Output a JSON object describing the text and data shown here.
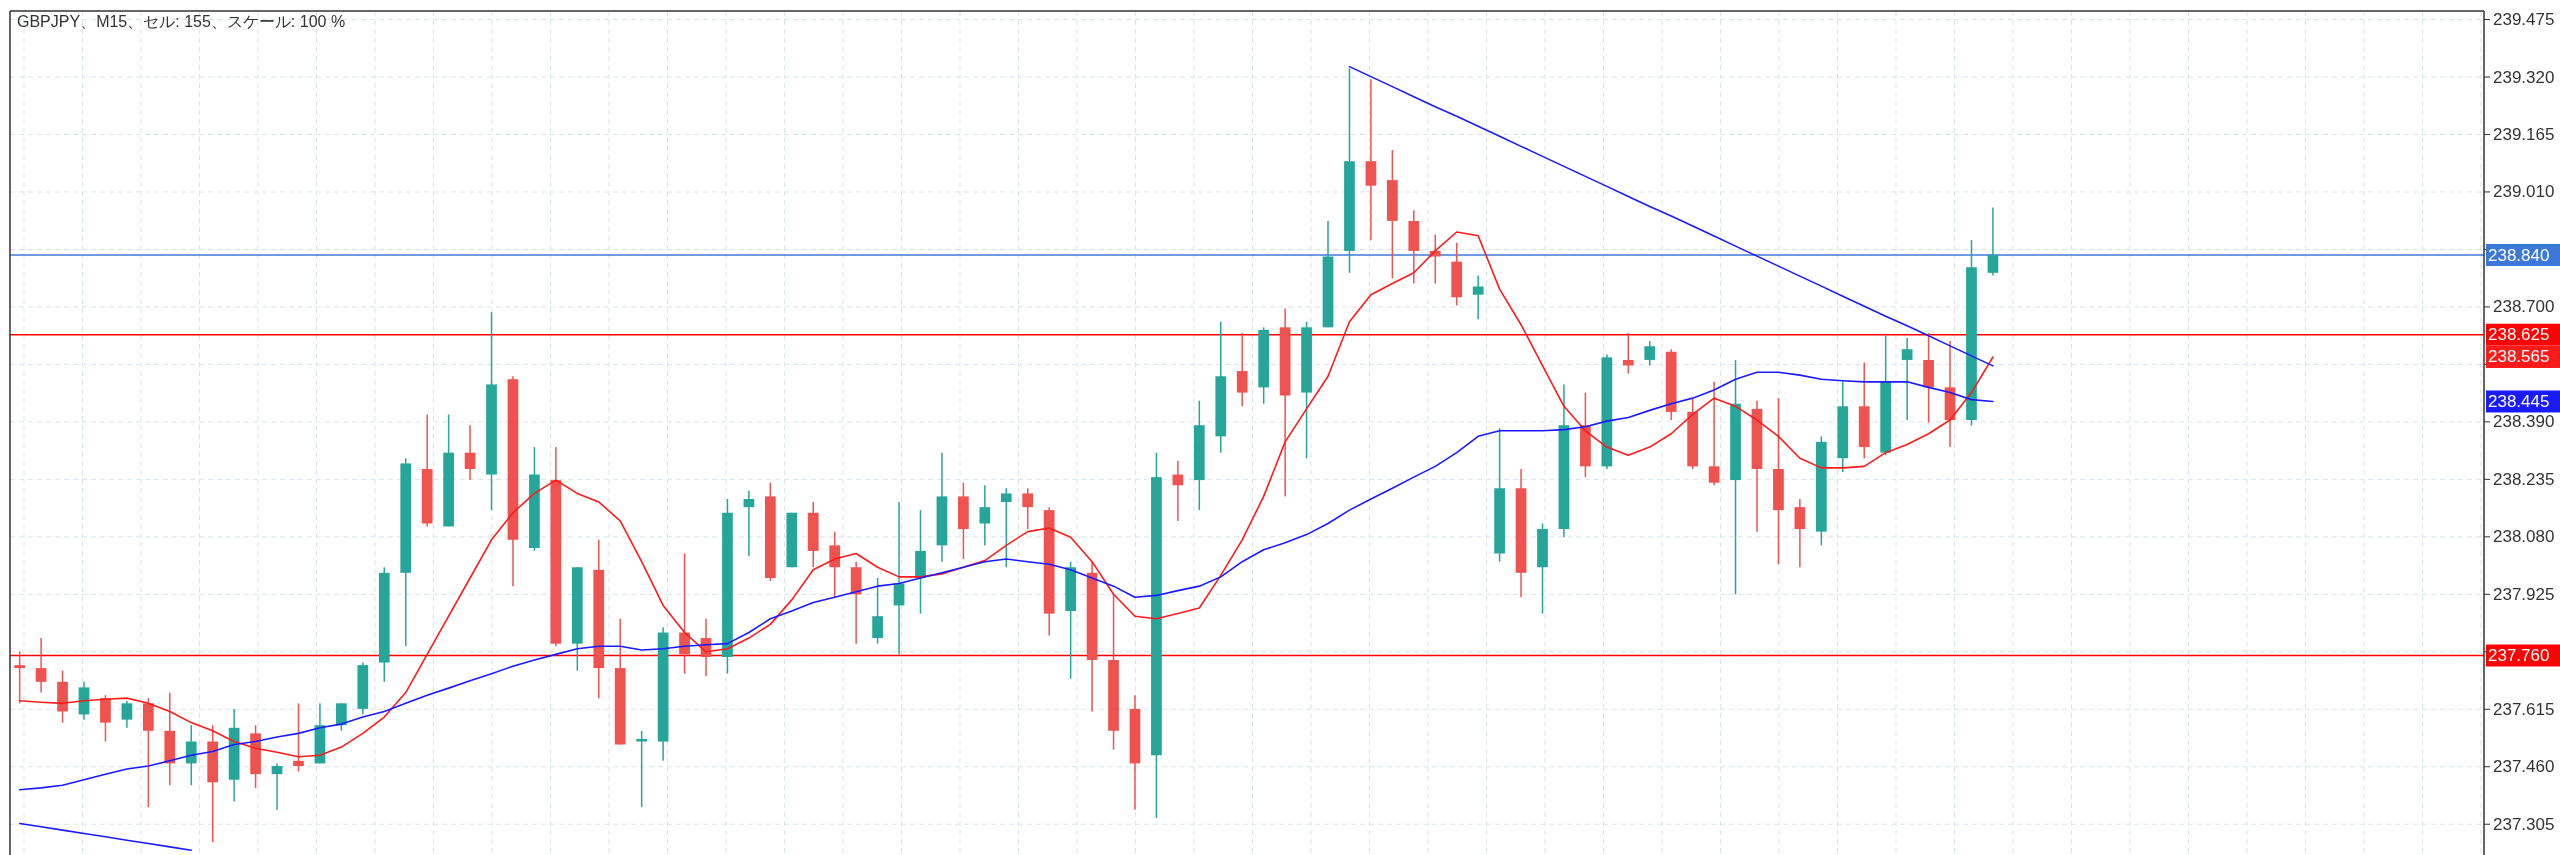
{
  "chart_data": {
    "type": "candlestick",
    "title": "GBPJPY、M15、セル: 155、スケール: 100 %",
    "tick_labels": "y",
    "grid": true,
    "categories": [
      null,
      null,
      null,
      null,
      null,
      null,
      null,
      null,
      null,
      null,
      null,
      null,
      null,
      null,
      null,
      null,
      null,
      null,
      null,
      null,
      null,
      null,
      null,
      null,
      null,
      null,
      null,
      null,
      null,
      null,
      null,
      null,
      null,
      null,
      null,
      null,
      null,
      null,
      null,
      null,
      null,
      null,
      null,
      null,
      null,
      null,
      null,
      null,
      null,
      null,
      null,
      null,
      null,
      null,
      null,
      null,
      null,
      null,
      null,
      null,
      null,
      null,
      null,
      null,
      null,
      null,
      null,
      null,
      null,
      null,
      null,
      null,
      null,
      null,
      null,
      null,
      null,
      null,
      null,
      null,
      null,
      null,
      null,
      null,
      null,
      null,
      null,
      null,
      null,
      null,
      null,
      null,
      null
    ],
    "ylim": [
      237.222,
      239.498
    ],
    "yticks": [
      {
        "value": 239.475,
        "label": "239.475"
      },
      {
        "value": 239.32,
        "label": "239.320"
      },
      {
        "value": 239.165,
        "label": "239.165"
      },
      {
        "value": 239.01,
        "label": "239.010"
      },
      {
        "value": 238.855,
        "label": null
      },
      {
        "value": 238.7,
        "label": "238.700"
      },
      {
        "value": 238.545,
        "label": null
      },
      {
        "value": 238.39,
        "label": "238.390"
      },
      {
        "value": 238.235,
        "label": "238.235"
      },
      {
        "value": 238.08,
        "label": "238.080"
      },
      {
        "value": 237.925,
        "label": "237.925"
      },
      {
        "value": 237.77,
        "label": null
      },
      {
        "value": 237.615,
        "label": "237.615"
      },
      {
        "value": 237.46,
        "label": "237.460"
      },
      {
        "value": 237.305,
        "label": "237.305"
      }
    ],
    "ohlc": [
      [
        237.734,
        237.77,
        237.631,
        237.726
      ],
      [
        237.726,
        237.807,
        237.66,
        237.689
      ],
      [
        237.689,
        237.719,
        237.579,
        237.609
      ],
      [
        237.601,
        237.689,
        237.587,
        237.674
      ],
      [
        237.645,
        237.653,
        237.528,
        237.579
      ],
      [
        237.587,
        237.638,
        237.565,
        237.631
      ],
      [
        237.631,
        237.645,
        237.351,
        237.557
      ],
      [
        237.557,
        237.66,
        237.41,
        237.469
      ],
      [
        237.469,
        237.572,
        237.41,
        237.528
      ],
      [
        237.528,
        237.572,
        237.256,
        237.418
      ],
      [
        237.425,
        237.616,
        237.366,
        237.565
      ],
      [
        237.55,
        237.572,
        237.403,
        237.44
      ],
      [
        237.44,
        237.469,
        237.344,
        237.462
      ],
      [
        237.476,
        237.631,
        237.447,
        237.462
      ],
      [
        237.469,
        237.631,
        237.469,
        237.572
      ],
      [
        237.572,
        237.631,
        237.557,
        237.631
      ],
      [
        237.616,
        237.741,
        237.601,
        237.734
      ],
      [
        237.741,
        237.998,
        237.689,
        237.983
      ],
      [
        237.983,
        238.292,
        237.785,
        238.278
      ],
      [
        238.263,
        238.41,
        238.108,
        238.116
      ],
      [
        238.108,
        238.41,
        238.108,
        238.307
      ],
      [
        238.307,
        238.381,
        238.233,
        238.263
      ],
      [
        238.248,
        238.686,
        238.152,
        238.491
      ],
      [
        238.505,
        238.513,
        237.947,
        238.072
      ],
      [
        238.05,
        238.322,
        238.042,
        238.248
      ],
      [
        238.233,
        238.322,
        237.785,
        237.792
      ],
      [
        237.792,
        237.998,
        237.719,
        237.998
      ],
      [
        237.991,
        238.072,
        237.645,
        237.726
      ],
      [
        237.726,
        237.859,
        237.52,
        237.52
      ],
      [
        237.528,
        237.557,
        237.351,
        237.535
      ],
      [
        237.528,
        237.836,
        237.476,
        237.822
      ],
      [
        237.822,
        238.035,
        237.711,
        237.763
      ],
      [
        237.807,
        237.859,
        237.704,
        237.756
      ],
      [
        237.756,
        238.182,
        237.711,
        238.145
      ],
      [
        238.16,
        238.204,
        238.028,
        238.182
      ],
      [
        238.189,
        238.226,
        237.961,
        237.969
      ],
      [
        237.998,
        238.145,
        237.998,
        238.145
      ],
      [
        238.145,
        238.174,
        237.998,
        238.042
      ],
      [
        238.057,
        238.094,
        237.917,
        237.998
      ],
      [
        237.998,
        238.013,
        237.792,
        237.925
      ],
      [
        237.807,
        237.969,
        237.792,
        237.866
      ],
      [
        237.895,
        238.174,
        237.763,
        237.954
      ],
      [
        237.969,
        238.152,
        237.873,
        238.042
      ],
      [
        238.057,
        238.307,
        238.013,
        238.189
      ],
      [
        238.189,
        238.226,
        238.02,
        238.101
      ],
      [
        238.116,
        238.219,
        238.057,
        238.16
      ],
      [
        238.174,
        238.211,
        237.998,
        238.197
      ],
      [
        238.197,
        238.211,
        238.101,
        238.16
      ],
      [
        238.152,
        238.16,
        237.814,
        237.873
      ],
      [
        237.88,
        238.013,
        237.697,
        237.998
      ],
      [
        237.983,
        238.013,
        237.609,
        237.748
      ],
      [
        237.748,
        237.925,
        237.506,
        237.557
      ],
      [
        237.616,
        237.653,
        237.344,
        237.469
      ],
      [
        237.491,
        238.307,
        237.322,
        238.241
      ],
      [
        238.248,
        238.285,
        238.123,
        238.219
      ],
      [
        238.233,
        238.447,
        238.152,
        238.381
      ],
      [
        238.351,
        238.66,
        238.307,
        238.513
      ],
      [
        238.527,
        238.63,
        238.432,
        238.469
      ],
      [
        238.483,
        238.645,
        238.439,
        238.638
      ],
      [
        238.645,
        238.696,
        238.189,
        238.461
      ],
      [
        238.469,
        238.66,
        238.292,
        238.645
      ],
      [
        238.645,
        238.932,
        238.645,
        238.836
      ],
      [
        238.851,
        239.343,
        238.792,
        239.093
      ],
      [
        239.093,
        239.314,
        238.88,
        239.027
      ],
      [
        239.042,
        239.123,
        238.777,
        238.932
      ],
      [
        238.932,
        238.961,
        238.763,
        238.851
      ],
      [
        238.851,
        238.895,
        238.763,
        238.836
      ],
      [
        238.822,
        238.873,
        238.704,
        238.726
      ],
      [
        238.733,
        238.785,
        238.667,
        238.755
      ],
      [
        238.035,
        238.373,
        238.013,
        238.211
      ],
      [
        238.211,
        238.263,
        237.917,
        237.983
      ],
      [
        237.998,
        238.116,
        237.873,
        238.101
      ],
      [
        238.101,
        238.491,
        238.079,
        238.381
      ],
      [
        238.381,
        238.469,
        238.241,
        238.27
      ],
      [
        238.27,
        238.572,
        238.263,
        238.564
      ],
      [
        238.557,
        238.63,
        238.52,
        238.542
      ],
      [
        238.557,
        238.608,
        238.542,
        238.594
      ],
      [
        238.579,
        238.586,
        238.395,
        238.417
      ],
      [
        238.417,
        238.454,
        238.263,
        238.27
      ],
      [
        238.27,
        238.498,
        238.219,
        238.226
      ],
      [
        238.233,
        238.557,
        237.925,
        238.439
      ],
      [
        238.425,
        238.447,
        238.094,
        238.263
      ],
      [
        238.263,
        238.454,
        238.006,
        238.152
      ],
      [
        238.16,
        238.182,
        237.998,
        238.101
      ],
      [
        238.094,
        238.351,
        238.057,
        238.336
      ],
      [
        238.292,
        238.498,
        238.255,
        238.432
      ],
      [
        238.432,
        238.55,
        238.292,
        238.322
      ],
      [
        238.307,
        238.623,
        238.3,
        238.498
      ],
      [
        238.557,
        238.616,
        238.395,
        238.586
      ],
      [
        238.557,
        238.63,
        238.388,
        238.483
      ],
      [
        238.483,
        238.608,
        238.322,
        238.395
      ],
      [
        238.395,
        238.88,
        238.38,
        238.807
      ],
      [
        238.792,
        238.968,
        238.785,
        238.84
      ]
    ],
    "colors": [
      "#ef5350",
      "#ef5350",
      "#ef5350",
      "#26a69a",
      "#ef5350",
      "#26a69a",
      "#ef5350",
      "#ef5350",
      "#26a69a",
      "#ef5350",
      "#26a69a",
      "#ef5350",
      "#26a69a",
      "#ef5350",
      "#26a69a",
      "#26a69a",
      "#26a69a",
      "#26a69a",
      "#26a69a",
      "#ef5350",
      "#26a69a",
      "#ef5350",
      "#26a69a",
      "#ef5350",
      "#26a69a",
      "#ef5350",
      "#26a69a",
      "#ef5350",
      "#ef5350",
      "#26a69a",
      "#26a69a",
      "#ef5350",
      "#ef5350",
      "#26a69a",
      "#26a69a",
      "#ef5350",
      "#26a69a",
      "#ef5350",
      "#ef5350",
      "#ef5350",
      "#26a69a",
      "#26a69a",
      "#26a69a",
      "#26a69a",
      "#ef5350",
      "#26a69a",
      "#26a69a",
      "#ef5350",
      "#ef5350",
      "#26a69a",
      "#ef5350",
      "#ef5350",
      "#ef5350",
      "#26a69a",
      "#ef5350",
      "#26a69a",
      "#26a69a",
      "#ef5350",
      "#26a69a",
      "#ef5350",
      "#26a69a",
      "#26a69a",
      "#26a69a",
      "#ef5350",
      "#ef5350",
      "#ef5350",
      "#ef5350",
      "#ef5350",
      "#26a69a",
      "#26a69a",
      "#ef5350",
      "#26a69a",
      "#26a69a",
      "#ef5350",
      "#26a69a",
      "#ef5350",
      "#26a69a",
      "#ef5350",
      "#ef5350",
      "#ef5350",
      "#26a69a",
      "#ef5350",
      "#ef5350",
      "#ef5350",
      "#26a69a",
      "#26a69a",
      "#ef5350",
      "#26a69a",
      "#26a69a",
      "#ef5350",
      "#ef5350",
      "#26a69a",
      "#26a69a"
    ],
    "series": [
      {
        "type": "line",
        "color": "#ff1a1a",
        "values": [
          237.638,
          237.634,
          237.631,
          237.638,
          237.642,
          237.645,
          237.631,
          237.609,
          237.579,
          237.557,
          237.528,
          237.51,
          237.499,
          237.487,
          237.491,
          237.513,
          237.55,
          237.594,
          237.66,
          237.763,
          237.866,
          237.969,
          238.072,
          238.145,
          238.197,
          238.233,
          238.197,
          238.174,
          238.123,
          238.013,
          237.895,
          237.822,
          237.77,
          237.778,
          237.807,
          237.844,
          237.91,
          237.991,
          238.02,
          238.035,
          237.998,
          237.972,
          237.972,
          237.98,
          237.998,
          238.016,
          238.057,
          238.094,
          238.104,
          238.079,
          238.013,
          237.925,
          237.866,
          237.859,
          237.873,
          237.888,
          237.976,
          238.072,
          238.189,
          238.336,
          238.425,
          238.513,
          238.66,
          238.733,
          238.763,
          238.792,
          238.851,
          238.902,
          238.892,
          238.748,
          238.652,
          238.542,
          238.432,
          238.366,
          238.322,
          238.3,
          238.322,
          238.358,
          238.41,
          238.454,
          238.432,
          238.395,
          238.351,
          238.292,
          238.266,
          238.266,
          238.27,
          238.307,
          238.329,
          238.358,
          238.395,
          238.469,
          238.565
        ]
      },
      {
        "type": "line",
        "color": "#1a1aff",
        "values": [
          237.398,
          237.403,
          237.41,
          237.425,
          237.44,
          237.454,
          237.462,
          237.476,
          237.491,
          237.501,
          237.52,
          237.528,
          237.54,
          237.55,
          237.565,
          237.575,
          237.594,
          237.609,
          237.631,
          237.653,
          237.672,
          237.692,
          237.711,
          237.731,
          237.748,
          237.763,
          237.778,
          237.785,
          237.785,
          237.775,
          237.778,
          237.785,
          237.789,
          237.792,
          237.822,
          237.859,
          237.88,
          237.903,
          237.917,
          237.932,
          237.947,
          237.954,
          237.969,
          237.983,
          237.998,
          238.013,
          238.02,
          238.013,
          238.006,
          237.991,
          237.969,
          237.947,
          237.917,
          237.922,
          237.935,
          237.947,
          237.972,
          238.013,
          238.045,
          238.064,
          238.086,
          238.116,
          238.152,
          238.182,
          238.211,
          238.241,
          238.27,
          238.307,
          238.351,
          238.366,
          238.366,
          238.366,
          238.369,
          238.377,
          238.392,
          238.402,
          238.421,
          238.439,
          238.454,
          238.476,
          238.505,
          238.524,
          238.524,
          238.516,
          238.505,
          238.501,
          238.498,
          238.498,
          238.498,
          238.483,
          238.469,
          238.45,
          238.445
        ]
      },
      {
        "type": "line",
        "color": "#1a1aff",
        "values": [
          null,
          null,
          null,
          null,
          null,
          null,
          null,
          null,
          null,
          null,
          null,
          null,
          null,
          null,
          null,
          null,
          null,
          null,
          null,
          null,
          null,
          null,
          null,
          null,
          null,
          null,
          null,
          null,
          null,
          null,
          null,
          null,
          null,
          null,
          null,
          null,
          null,
          null,
          null,
          null,
          null,
          null,
          null,
          null,
          null,
          null,
          null,
          null,
          null,
          null,
          null,
          null,
          null,
          null,
          null,
          null,
          null,
          null,
          null,
          null,
          null,
          null,
          239.348,
          239.321,
          239.294,
          239.267,
          239.24,
          239.214,
          239.187,
          239.16,
          239.133,
          239.106,
          239.079,
          239.052,
          239.025,
          238.998,
          238.971,
          238.945,
          238.918,
          238.891,
          238.864,
          238.837,
          238.81,
          238.783,
          238.756,
          238.729,
          238.702,
          238.675,
          238.649,
          238.622,
          238.595,
          238.568,
          238.541
        ]
      },
      {
        "type": "line",
        "color": "#1a1aff",
        "values": [
          237.307,
          237.298,
          237.289,
          237.28,
          237.271,
          237.262,
          237.253,
          237.244,
          237.235,
          null,
          null,
          null,
          null,
          null,
          null,
          null,
          null,
          null,
          null,
          null,
          null,
          null,
          null,
          null,
          null,
          null,
          null,
          null,
          null,
          null,
          null,
          null,
          null,
          null,
          null,
          null,
          null,
          null,
          null,
          null,
          null,
          null,
          null,
          null,
          null,
          null,
          null,
          null,
          null,
          null,
          null,
          null,
          null,
          null,
          null,
          null,
          null,
          null,
          null,
          null,
          null,
          null,
          null,
          null,
          null,
          null,
          null,
          null,
          null,
          null,
          null,
          null,
          null,
          null,
          null,
          null,
          null,
          null,
          null,
          null,
          null,
          null,
          null,
          null,
          null,
          null,
          null,
          null,
          null,
          null,
          null,
          null,
          null
        ]
      }
    ],
    "ref_lines": [
      {
        "axis": "y",
        "value": 238.84,
        "label": "238.840",
        "color": "#3c78d8"
      },
      {
        "axis": "y",
        "value": 238.625,
        "label": "238.625",
        "color": "#ff0000"
      },
      {
        "axis": "y",
        "value": 237.76,
        "label": "237.760",
        "color": "#ff0000"
      }
    ],
    "annotations": [
      "238.565",
      "238.445"
    ]
  }
}
